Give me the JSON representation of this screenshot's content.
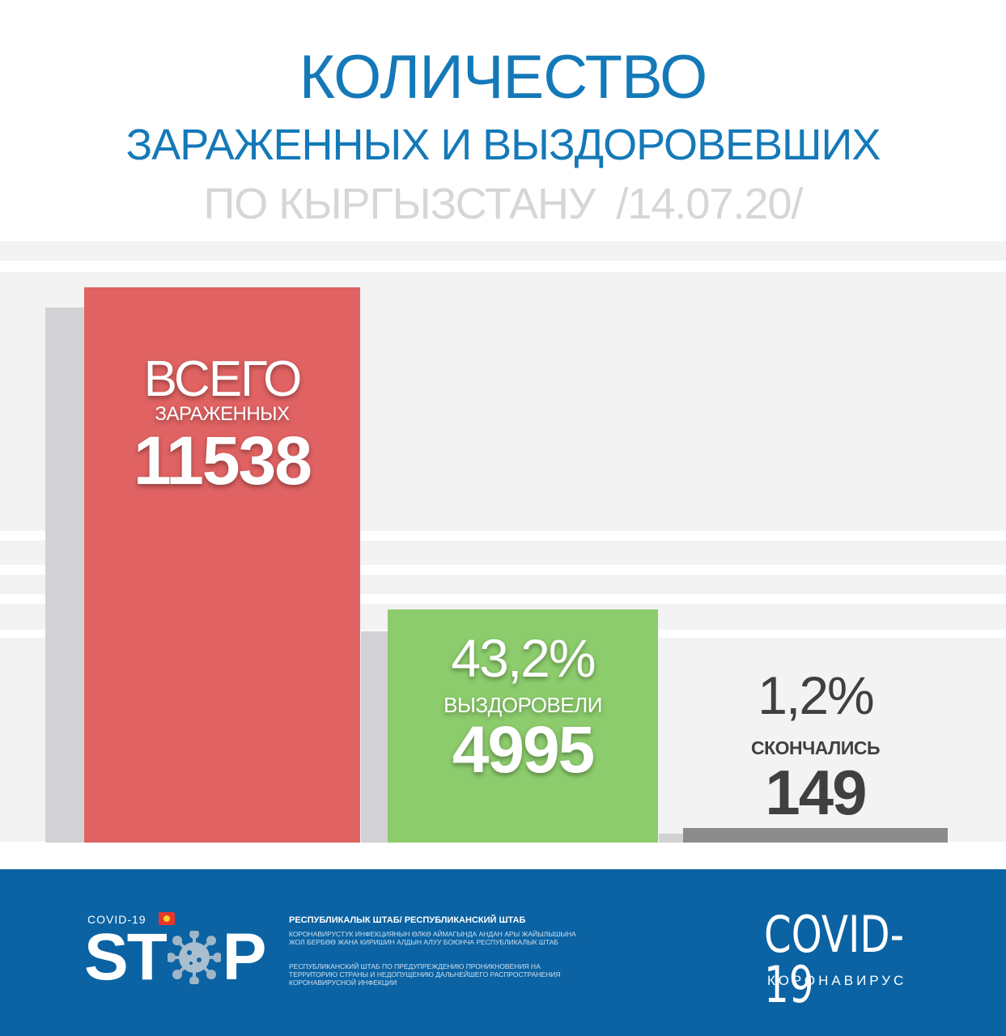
{
  "header": {
    "title_line1": "КОЛИЧЕСТВО",
    "title_line2": "ЗАРАЖЕННЫХ И ВЫЗДОРОВЕВШИХ",
    "title_line3": "ПО КЫРГЫЗСТАНУ",
    "date": "/14.07.20/"
  },
  "chart_data": {
    "type": "bar",
    "categories": [
      "ЗАРАЖЕННЫХ",
      "ВЫЗДОРОВЕЛИ",
      "СКОНЧАЛИСЬ"
    ],
    "values": [
      11538,
      4995,
      149
    ],
    "title": "КОЛИЧЕСТВО ЗАРАЖЕННЫХ И ВЫЗДОРОВЕВШИХ ПО КЫРГЫЗСТАНУ /14.07.20/",
    "bars": [
      {
        "top_label": "ВСЕГО",
        "category": "ЗАРАЖЕННЫХ",
        "value_text": "11538",
        "value": 11538,
        "color": "#e06262"
      },
      {
        "top_label": "43,2%",
        "category": "ВЫЗДОРОВЕЛИ",
        "value_text": "4995",
        "value": 4995,
        "color": "#8ccc6c"
      },
      {
        "top_label": "1,2%",
        "category": "СКОНЧАЛИСЬ",
        "value_text": "149",
        "value": 149,
        "color": "#8c8c8c"
      }
    ]
  },
  "footer": {
    "covid_small": "COVID-19",
    "stop_left": "ST",
    "stop_right": "P",
    "shtab_title": "РЕСПУБЛИКАЛЫК ШТАБ/ РЕСПУБЛИКАНСКИЙ ШТАБ",
    "shtab_text_ky": "КОРОНАВИРУСТУК ИНФЕКЦИЯНЫН ӨЛКӨ АЙМАГЫНДА АНДАН АРЫ ЖАЙЫЛЫШЫНА ЖОЛ БЕРБӨӨ ЖАНА КИРИШИН АЛДЫН АЛУУ БОЮНЧА РЕСПУБЛИКАЛЫК ШТАБ",
    "shtab_text_ru": "РЕСПУБЛИКАНСКИЙ ШТАБ ПО ПРЕДУПРЕЖДЕНИЮ ПРОНИКНОВЕНИЯ НА ТЕРРИТОРИЮ СТРАНЫ И НЕДОПУЩЕНИЮ ДАЛЬНЕЙШЕГО РАСПРОСТРАНЕНИЯ КОРОНАВИРУСНОЙ ИНФЕКЦИИ",
    "covid_big": "COVID-19",
    "coronavirus": "КОРОНАВИРУС"
  },
  "colors": {
    "title_blue": "#1479b8",
    "subtitle_grey": "#d6d6d6",
    "footer_blue": "#0b63a3"
  }
}
